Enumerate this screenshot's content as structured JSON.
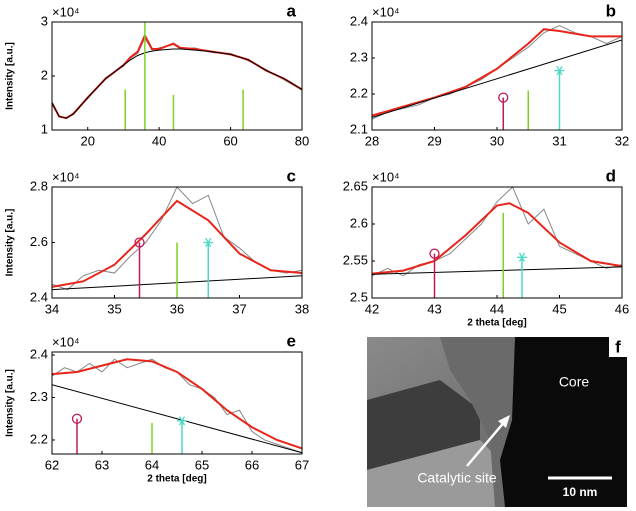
{
  "chart_data": [
    {
      "type": "line",
      "label": "a",
      "ylabel": "Intensity [a.u.]",
      "y_multiplier": "×10⁴",
      "xlim": [
        10,
        80
      ],
      "ylim": [
        1,
        3
      ],
      "xticks": [
        20,
        40,
        60,
        80
      ],
      "yticks": [
        1,
        2,
        3
      ],
      "series": [
        {
          "color": "#888888",
          "x": [
            10,
            12,
            14,
            16,
            20,
            25,
            30,
            32,
            34,
            36,
            38,
            40,
            44,
            46,
            50,
            55,
            60,
            65,
            70,
            75,
            80
          ],
          "values": [
            1.52,
            1.26,
            1.21,
            1.32,
            1.58,
            1.97,
            2.18,
            2.33,
            2.42,
            2.7,
            2.48,
            2.52,
            2.58,
            2.5,
            2.52,
            2.43,
            2.42,
            2.28,
            2.12,
            1.93,
            1.74
          ]
        },
        {
          "color": "#e8251b",
          "x": [
            10,
            12,
            14,
            16,
            20,
            25,
            30,
            32,
            34,
            36,
            38,
            40,
            44,
            46,
            50,
            55,
            60,
            65,
            70,
            75,
            80
          ],
          "values": [
            1.5,
            1.25,
            1.22,
            1.3,
            1.6,
            1.95,
            2.2,
            2.35,
            2.45,
            2.75,
            2.5,
            2.5,
            2.6,
            2.52,
            2.5,
            2.45,
            2.4,
            2.3,
            2.1,
            1.95,
            1.75
          ]
        },
        {
          "color": "#000000",
          "x": [
            10,
            12,
            14,
            16,
            20,
            25,
            30,
            32,
            34,
            36,
            38,
            40,
            44,
            46,
            50,
            55,
            60,
            65,
            70,
            75,
            80
          ],
          "values": [
            1.5,
            1.25,
            1.22,
            1.3,
            1.6,
            1.95,
            2.2,
            2.3,
            2.38,
            2.43,
            2.46,
            2.48,
            2.5,
            2.5,
            2.48,
            2.45,
            2.4,
            2.3,
            2.1,
            1.95,
            1.75
          ]
        }
      ],
      "stems": [
        {
          "color": "#7ed321",
          "marker": "none",
          "x": [
            30.5,
            36,
            44,
            63.5
          ],
          "values": [
            1.75,
            3.0,
            1.65,
            1.75
          ]
        }
      ]
    },
    {
      "type": "line",
      "label": "b",
      "y_multiplier": "×10⁴",
      "xlim": [
        28,
        32
      ],
      "ylim": [
        2.1,
        2.4
      ],
      "xticks": [
        28,
        29,
        30,
        31,
        32
      ],
      "yticks": [
        2.1,
        2.2,
        2.3,
        2.4
      ],
      "series": [
        {
          "color": "#888888",
          "x": [
            28,
            28.25,
            28.5,
            28.75,
            29,
            29.25,
            29.5,
            29.75,
            30,
            30.25,
            30.5,
            30.75,
            31,
            31.25,
            31.5,
            31.75,
            32
          ],
          "values": [
            2.13,
            2.15,
            2.16,
            2.17,
            2.19,
            2.2,
            2.22,
            2.24,
            2.27,
            2.3,
            2.33,
            2.37,
            2.39,
            2.37,
            2.36,
            2.34,
            2.36
          ]
        },
        {
          "color": "#e8251b",
          "x": [
            28,
            28.5,
            29,
            29.5,
            30,
            30.5,
            30.75,
            31,
            31.5,
            32
          ],
          "values": [
            2.14,
            2.165,
            2.19,
            2.22,
            2.27,
            2.34,
            2.38,
            2.375,
            2.36,
            2.36
          ]
        },
        {
          "color": "#000000",
          "x": [
            28,
            32
          ],
          "values": [
            2.135,
            2.35
          ]
        }
      ],
      "stems": [
        {
          "color": "#c2185b",
          "marker": "circle",
          "x": [
            30.1
          ],
          "values": [
            2.19
          ]
        },
        {
          "color": "#7ed321",
          "marker": "none",
          "x": [
            30.5
          ],
          "values": [
            2.21
          ]
        },
        {
          "color": "#4dd9c8",
          "marker": "asterisk",
          "x": [
            31
          ],
          "values": [
            2.265
          ]
        }
      ]
    },
    {
      "type": "line",
      "label": "c",
      "ylabel": "Intensity [a.u.]",
      "y_multiplier": "×10⁴",
      "xlim": [
        34,
        38
      ],
      "ylim": [
        2.4,
        2.8
      ],
      "xticks": [
        34,
        35,
        36,
        37,
        38
      ],
      "yticks": [
        2.4,
        2.6,
        2.8
      ],
      "series": [
        {
          "color": "#888888",
          "x": [
            34,
            34.25,
            34.5,
            34.75,
            35,
            35.25,
            35.5,
            35.75,
            36,
            36.25,
            36.5,
            36.75,
            37,
            37.25,
            37.5,
            37.75,
            38
          ],
          "values": [
            2.45,
            2.43,
            2.48,
            2.5,
            2.49,
            2.55,
            2.6,
            2.68,
            2.8,
            2.74,
            2.77,
            2.62,
            2.58,
            2.53,
            2.5,
            2.49,
            2.5
          ]
        },
        {
          "color": "#e8251b",
          "x": [
            34,
            34.5,
            35,
            35.5,
            36,
            36.5,
            37,
            37.5,
            38
          ],
          "values": [
            2.44,
            2.46,
            2.52,
            2.63,
            2.75,
            2.68,
            2.56,
            2.5,
            2.49
          ]
        },
        {
          "color": "#000000",
          "x": [
            34,
            38
          ],
          "values": [
            2.43,
            2.48
          ]
        }
      ],
      "stems": [
        {
          "color": "#c2185b",
          "marker": "circle",
          "x": [
            35.4
          ],
          "values": [
            2.6
          ]
        },
        {
          "color": "#7ed321",
          "marker": "none",
          "x": [
            36
          ],
          "values": [
            2.6
          ]
        },
        {
          "color": "#4dd9c8",
          "marker": "asterisk",
          "x": [
            36.5
          ],
          "values": [
            2.6
          ]
        }
      ]
    },
    {
      "type": "line",
      "label": "d",
      "xlabel": "2 theta [deg]",
      "y_multiplier": "×10⁴",
      "xlim": [
        42,
        46
      ],
      "ylim": [
        2.5,
        2.65
      ],
      "xticks": [
        42,
        43,
        44,
        45,
        46
      ],
      "yticks": [
        2.5,
        2.55,
        2.6,
        2.65
      ],
      "series": [
        {
          "color": "#888888",
          "x": [
            42,
            42.25,
            42.5,
            42.75,
            43,
            43.25,
            43.5,
            43.75,
            44,
            44.25,
            44.5,
            44.75,
            45,
            45.25,
            45.5,
            45.75,
            46
          ],
          "values": [
            2.53,
            2.54,
            2.53,
            2.545,
            2.55,
            2.56,
            2.58,
            2.6,
            2.63,
            2.65,
            2.6,
            2.62,
            2.57,
            2.56,
            2.55,
            2.54,
            2.545
          ]
        },
        {
          "color": "#e8251b",
          "x": [
            42,
            42.5,
            43,
            43.5,
            44,
            44.2,
            44.5,
            45,
            45.5,
            46
          ],
          "values": [
            2.533,
            2.537,
            2.55,
            2.585,
            2.625,
            2.628,
            2.615,
            2.575,
            2.55,
            2.543
          ]
        },
        {
          "color": "#000000",
          "x": [
            42,
            46
          ],
          "values": [
            2.532,
            2.542
          ]
        }
      ],
      "stems": [
        {
          "color": "#c2185b",
          "marker": "circle",
          "x": [
            43
          ],
          "values": [
            2.56
          ]
        },
        {
          "color": "#7ed321",
          "marker": "none",
          "x": [
            44.1
          ],
          "values": [
            2.615
          ]
        },
        {
          "color": "#4dd9c8",
          "marker": "asterisk",
          "x": [
            44.4
          ],
          "values": [
            2.555
          ]
        }
      ]
    },
    {
      "type": "line",
      "label": "e",
      "ylabel": "Intensity [a.u.]",
      "xlabel": "2 theta [deg]",
      "y_multiplier": "×10⁴",
      "xlim": [
        62,
        67
      ],
      "ylim": [
        2.167,
        2.407
      ],
      "xticks": [
        62,
        63,
        64,
        65,
        66,
        67
      ],
      "yticks": [
        2.2,
        2.3,
        2.4
      ],
      "series": [
        {
          "color": "#888888",
          "x": [
            62,
            62.25,
            62.5,
            62.75,
            63,
            63.25,
            63.5,
            63.75,
            64,
            64.25,
            64.5,
            64.75,
            65,
            65.25,
            65.5,
            65.75,
            66,
            66.25,
            66.5,
            66.75,
            67
          ],
          "values": [
            2.35,
            2.37,
            2.36,
            2.38,
            2.36,
            2.39,
            2.37,
            2.38,
            2.39,
            2.37,
            2.36,
            2.33,
            2.32,
            2.3,
            2.26,
            2.27,
            2.22,
            2.2,
            2.19,
            2.18,
            2.17
          ]
        },
        {
          "color": "#e8251b",
          "x": [
            62,
            62.5,
            63,
            63.5,
            64,
            64.5,
            65,
            65.5,
            66,
            66.5,
            67
          ],
          "values": [
            2.355,
            2.36,
            2.375,
            2.39,
            2.385,
            2.36,
            2.32,
            2.27,
            2.23,
            2.2,
            2.18
          ]
        },
        {
          "color": "#000000",
          "x": [
            62,
            67
          ],
          "values": [
            2.33,
            2.17
          ]
        }
      ],
      "stems": [
        {
          "color": "#c2185b",
          "marker": "circle",
          "x": [
            62.5
          ],
          "values": [
            2.25
          ]
        },
        {
          "color": "#7ed321",
          "marker": "none",
          "x": [
            64
          ],
          "values": [
            2.24
          ]
        },
        {
          "color": "#4dd9c8",
          "marker": "asterisk",
          "x": [
            64.6
          ],
          "values": [
            2.245
          ]
        }
      ]
    }
  ],
  "image_panel": {
    "label": "f",
    "core": "Core",
    "site": "Catalytic site",
    "scale": "10 nm"
  }
}
